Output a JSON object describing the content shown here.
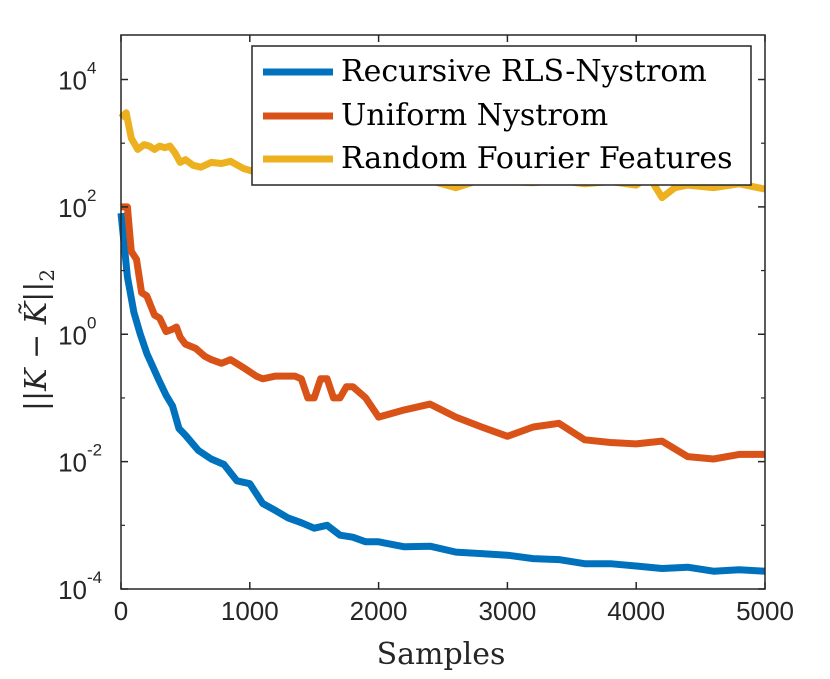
{
  "chart_data": {
    "type": "line",
    "title": "",
    "xlabel": "Samples",
    "ylabel_parts": {
      "outer": "||",
      "expr": "K − K̃",
      "tilde": "~",
      "sub": "2"
    },
    "ylabel": "||K − K̃||₂",
    "yscale": "log",
    "xlim": [
      0,
      5000
    ],
    "ylim": [
      0.0001,
      50000
    ],
    "grid": false,
    "legend_position": "top-right",
    "x_ticks": [
      {
        "value": 0,
        "label": "0"
      },
      {
        "value": 1000,
        "label": "1000"
      },
      {
        "value": 2000,
        "label": "2000"
      },
      {
        "value": 3000,
        "label": "3000"
      },
      {
        "value": 4000,
        "label": "4000"
      },
      {
        "value": 5000,
        "label": "5000"
      }
    ],
    "y_ticks": [
      {
        "value": 0.0001,
        "base": "10",
        "exp": "-4"
      },
      {
        "value": 0.01,
        "base": "10",
        "exp": "-2"
      },
      {
        "value": 1,
        "base": "10",
        "exp": "0"
      },
      {
        "value": 100,
        "base": "10",
        "exp": "2"
      },
      {
        "value": 10000,
        "base": "10",
        "exp": "4"
      }
    ],
    "series": [
      {
        "name": "Recursive RLS-Nystrom",
        "color": "#0072BD",
        "x": [
          0,
          50,
          100,
          150,
          200,
          250,
          300,
          350,
          400,
          450,
          500,
          600,
          700,
          800,
          900,
          1000,
          1100,
          1200,
          1300,
          1400,
          1500,
          1600,
          1700,
          1800,
          1900,
          2000,
          2200,
          2400,
          2600,
          2800,
          3000,
          3200,
          3400,
          3600,
          3800,
          4000,
          4200,
          4400,
          4600,
          4800,
          5000
        ],
        "values": [
          80,
          8,
          2.2,
          1,
          0.5,
          0.3,
          0.18,
          0.11,
          0.075,
          0.033,
          0.026,
          0.015,
          0.011,
          0.009,
          0.005,
          0.0045,
          0.0022,
          0.0017,
          0.0013,
          0.0011,
          0.0009,
          0.001,
          0.0007,
          0.00065,
          0.00055,
          0.00055,
          0.00046,
          0.00047,
          0.00038,
          0.00036,
          0.00034,
          0.0003,
          0.00029,
          0.00025,
          0.00025,
          0.00023,
          0.00021,
          0.00022,
          0.00019,
          0.0002,
          0.00019
        ]
      },
      {
        "name": "Uniform Nystrom",
        "color": "#D95319",
        "x": [
          0,
          50,
          80,
          120,
          160,
          200,
          260,
          300,
          350,
          400,
          430,
          460,
          500,
          580,
          650,
          700,
          780,
          850,
          950,
          1050,
          1100,
          1200,
          1300,
          1350,
          1400,
          1450,
          1500,
          1550,
          1600,
          1650,
          1700,
          1750,
          1800,
          1900,
          2000,
          2200,
          2400,
          2600,
          2800,
          3000,
          3200,
          3400,
          3600,
          3800,
          4000,
          4200,
          4400,
          4600,
          4800,
          5000
        ],
        "values": [
          100,
          100,
          20,
          15,
          4.5,
          4,
          2,
          1.8,
          1.1,
          1.2,
          1.3,
          0.9,
          0.7,
          0.6,
          0.45,
          0.4,
          0.35,
          0.4,
          0.3,
          0.22,
          0.2,
          0.22,
          0.22,
          0.22,
          0.2,
          0.1,
          0.1,
          0.2,
          0.2,
          0.1,
          0.1,
          0.15,
          0.15,
          0.1,
          0.05,
          0.065,
          0.08,
          0.05,
          0.035,
          0.025,
          0.035,
          0.04,
          0.022,
          0.02,
          0.019,
          0.021,
          0.012,
          0.011,
          0.013,
          0.013
        ]
      },
      {
        "name": "Random Fourier Features",
        "color": "#EDB120",
        "x": [
          0,
          40,
          80,
          130,
          180,
          220,
          260,
          300,
          340,
          380,
          420,
          460,
          500,
          560,
          620,
          700,
          780,
          850,
          950,
          1050,
          1150,
          1250,
          1350,
          1450,
          1550,
          1650,
          1750,
          1850,
          1950,
          2100,
          2250,
          2400,
          2600,
          2800,
          3000,
          3200,
          3400,
          3600,
          3800,
          4000,
          4100,
          4200,
          4300,
          4400,
          4600,
          4800,
          5000
        ],
        "values": [
          2500,
          3000,
          1200,
          800,
          950,
          900,
          800,
          900,
          850,
          900,
          700,
          500,
          550,
          450,
          420,
          500,
          480,
          520,
          400,
          350,
          380,
          400,
          360,
          380,
          330,
          360,
          320,
          350,
          250,
          300,
          280,
          260,
          200,
          270,
          250,
          240,
          260,
          230,
          250,
          220,
          300,
          140,
          200,
          220,
          200,
          230,
          190
        ]
      }
    ]
  }
}
